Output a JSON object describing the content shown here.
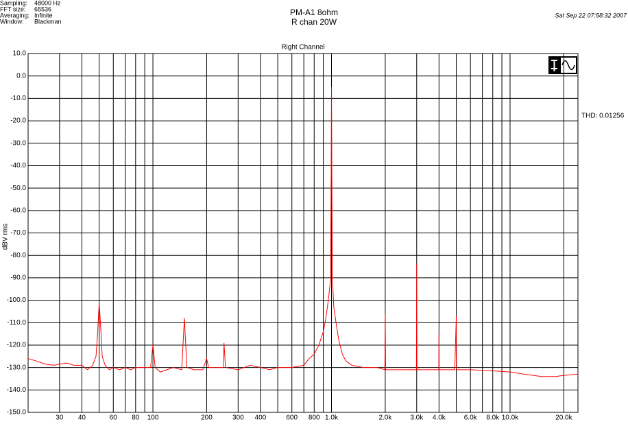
{
  "header": {
    "info": [
      [
        "Sampling:",
        "48000 Hz"
      ],
      [
        "FFT size:",
        "65536"
      ],
      [
        "Averaging:",
        "Infinite"
      ],
      [
        "Window:",
        "Blackman"
      ]
    ],
    "title": "PM-A1  8ohm",
    "subtitle": "R chan  20W",
    "date": "Sat Sep 22 07:58:32 2007"
  },
  "chart_data": {
    "type": "line",
    "title": "Right Channel",
    "ylabel": "dBV rms",
    "annotation": "THD: 0.01256",
    "log_x": true,
    "grid": true,
    "color": "#ff0000",
    "xlim": [
      20,
      24000
    ],
    "ylim": [
      -150,
      10
    ],
    "xticks": [
      30,
      40,
      60,
      80,
      100,
      200,
      300,
      400,
      600,
      800,
      {
        "value": 1000,
        "label": "1.0k"
      },
      {
        "value": 2000,
        "label": "2.0k"
      },
      {
        "value": 3000,
        "label": "3.0k"
      },
      {
        "value": 4000,
        "label": "4.0k"
      },
      {
        "value": 6000,
        "label": "6.0k"
      },
      {
        "value": 8000,
        "label": "8.0k"
      },
      {
        "value": 10000,
        "label": "10.0k"
      },
      {
        "value": 20000,
        "label": "20.0k"
      }
    ],
    "xminor": [
      50,
      70,
      90,
      500,
      700,
      900,
      5000,
      7000,
      9000
    ],
    "yticks": [
      {
        "value": 10,
        "label": "10.0"
      },
      {
        "value": 0,
        "label": "0.0"
      },
      {
        "value": -10,
        "label": "-10.0"
      },
      {
        "value": -20,
        "label": "-20.0"
      },
      {
        "value": -30,
        "label": "-30.0"
      },
      {
        "value": -40,
        "label": "-40.0"
      },
      {
        "value": -50,
        "label": "-50.0"
      },
      {
        "value": -60,
        "label": "-60.0"
      },
      {
        "value": -70,
        "label": "-70.0"
      },
      {
        "value": -80,
        "label": "-80.0"
      },
      {
        "value": -90,
        "label": "-90.0"
      },
      {
        "value": -100,
        "label": "-100.0"
      },
      {
        "value": -110,
        "label": "-110.0"
      },
      {
        "value": -120,
        "label": "-120.0"
      },
      {
        "value": -130,
        "label": "-130.0"
      },
      {
        "value": -140,
        "label": "-140.0"
      },
      {
        "value": -150,
        "label": "-150.0"
      }
    ],
    "x": [
      20,
      22,
      25,
      28,
      30,
      33,
      36,
      40,
      43,
      46,
      48,
      49,
      50,
      51,
      52,
      54,
      57,
      60,
      65,
      70,
      75,
      80,
      90,
      97,
      100,
      103,
      110,
      130,
      145,
      150,
      155,
      170,
      190,
      200,
      205,
      230,
      248,
      250,
      255,
      300,
      350,
      400,
      450,
      500,
      600,
      700,
      750,
      800,
      850,
      900,
      930,
      960,
      975,
      990,
      1000,
      1010,
      1030,
      1060,
      1100,
      1150,
      1200,
      1300,
      1500,
      1800,
      1990,
      2000,
      2010,
      2500,
      2990,
      3000,
      3010,
      3500,
      3990,
      4000,
      4010,
      4900,
      5000,
      5010,
      6000,
      8000,
      10000,
      12000,
      15000,
      18000,
      20000,
      24000
    ],
    "values": [
      -126,
      -127,
      -128.5,
      -129,
      -128.5,
      -128,
      -129,
      -129,
      -131,
      -129,
      -125,
      -115,
      -101,
      -112,
      -125,
      -129,
      -131,
      -130,
      -131,
      -130,
      -131,
      -130,
      -130,
      -130,
      -120,
      -130,
      -132,
      -130,
      -131,
      -108,
      -130,
      -131,
      -131,
      -126,
      -130,
      -130,
      -130,
      -119,
      -130,
      -131,
      -129,
      -130,
      -131,
      -130,
      -130,
      -129,
      -126,
      -124,
      -120,
      -114,
      -108,
      -100,
      -95,
      -90,
      -5,
      -88,
      -103,
      -110,
      -118,
      -124,
      -127,
      -129,
      -130,
      -130,
      -131,
      -106,
      -131,
      -131,
      -131,
      -84,
      -131,
      -131,
      -131,
      -115,
      -131,
      -131,
      -107,
      -131,
      -131,
      -131.5,
      -132,
      -133,
      -134,
      -134,
      -133.5,
      -133
    ]
  }
}
